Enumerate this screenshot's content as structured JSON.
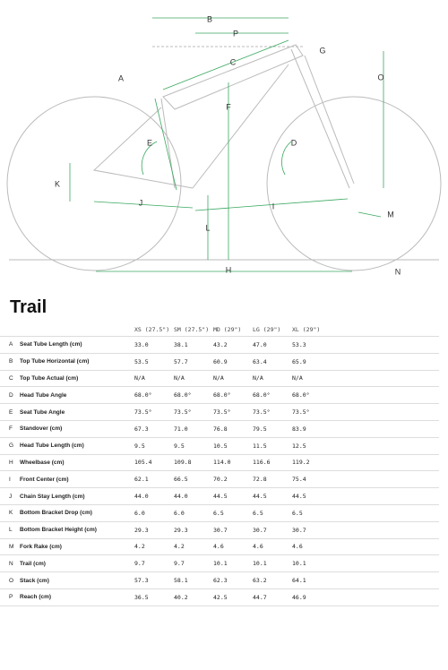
{
  "diagram": {
    "labels": [
      "B",
      "P",
      "C",
      "G",
      "O",
      "A",
      "F",
      "E",
      "D",
      "K",
      "J",
      "I",
      "M",
      "L",
      "H",
      "N"
    ]
  },
  "title": "Trail",
  "table": {
    "header": [
      "XS (27.5\")",
      "SM (27.5\")",
      "MD (29\")",
      "LG (29\")",
      "XL (29\")"
    ],
    "rows": [
      {
        "letter": "A",
        "name": "Seat Tube Length (cm)",
        "values": [
          "33.0",
          "38.1",
          "43.2",
          "47.0",
          "53.3"
        ]
      },
      {
        "letter": "B",
        "name": "Top Tube Horizontal (cm)",
        "values": [
          "53.5",
          "57.7",
          "60.9",
          "63.4",
          "65.9"
        ]
      },
      {
        "letter": "C",
        "name": "Top Tube Actual (cm)",
        "values": [
          "N/A",
          "N/A",
          "N/A",
          "N/A",
          "N/A"
        ]
      },
      {
        "letter": "D",
        "name": "Head Tube Angle",
        "values": [
          "68.0°",
          "68.0°",
          "68.0°",
          "68.0°",
          "68.0°"
        ]
      },
      {
        "letter": "E",
        "name": "Seat Tube Angle",
        "values": [
          "73.5°",
          "73.5°",
          "73.5°",
          "73.5°",
          "73.5°"
        ]
      },
      {
        "letter": "F",
        "name": "Standover (cm)",
        "values": [
          "67.3",
          "71.0",
          "76.8",
          "79.5",
          "83.9"
        ]
      },
      {
        "letter": "G",
        "name": "Head Tube Length (cm)",
        "values": [
          "9.5",
          "9.5",
          "10.5",
          "11.5",
          "12.5"
        ]
      },
      {
        "letter": "H",
        "name": "Wheelbase (cm)",
        "values": [
          "105.4",
          "109.8",
          "114.0",
          "116.6",
          "119.2"
        ]
      },
      {
        "letter": "I",
        "name": "Front Center (cm)",
        "values": [
          "62.1",
          "66.5",
          "70.2",
          "72.8",
          "75.4"
        ]
      },
      {
        "letter": "J",
        "name": "Chain Stay Length (cm)",
        "values": [
          "44.0",
          "44.0",
          "44.5",
          "44.5",
          "44.5"
        ]
      },
      {
        "letter": "K",
        "name": "Bottom Bracket Drop (cm)",
        "values": [
          "6.0",
          "6.0",
          "6.5",
          "6.5",
          "6.5"
        ]
      },
      {
        "letter": "L",
        "name": "Bottom Bracket Height (cm)",
        "values": [
          "29.3",
          "29.3",
          "30.7",
          "30.7",
          "30.7"
        ]
      },
      {
        "letter": "M",
        "name": "Fork Rake (cm)",
        "values": [
          "4.2",
          "4.2",
          "4.6",
          "4.6",
          "4.6"
        ]
      },
      {
        "letter": "N",
        "name": "Trail (cm)",
        "values": [
          "9.7",
          "9.7",
          "10.1",
          "10.1",
          "10.1"
        ]
      },
      {
        "letter": "O",
        "name": "Stack (cm)",
        "values": [
          "57.3",
          "58.1",
          "62.3",
          "63.2",
          "64.1"
        ]
      },
      {
        "letter": "P",
        "name": "Reach (cm)",
        "values": [
          "36.5",
          "40.2",
          "42.5",
          "44.7",
          "46.9"
        ]
      }
    ]
  }
}
